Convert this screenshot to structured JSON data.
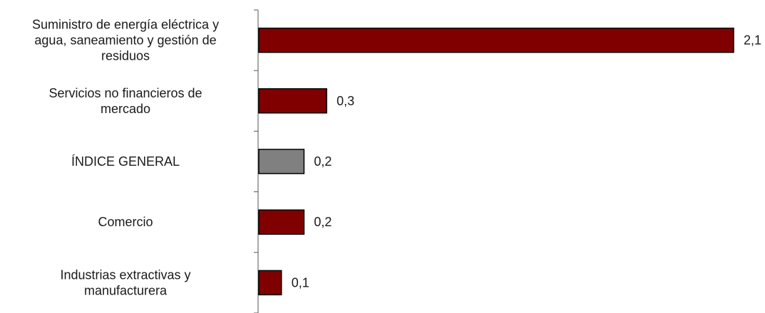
{
  "chart_data": {
    "type": "bar",
    "orientation": "horizontal",
    "categories": [
      "Suministro de energía eléctrica y agua, saneamiento y gestión de residuos",
      "Servicios no financieros de mercado",
      "ÍNDICE GENERAL",
      "Comercio",
      "Industrias extractivas y manufacturera"
    ],
    "category_lines": [
      [
        "Suministro de energía eléctrica y",
        "agua, saneamiento y gestión de",
        "residuos"
      ],
      [
        "Servicios no financieros de",
        "mercado"
      ],
      [
        "ÍNDICE GENERAL"
      ],
      [
        "Comercio"
      ],
      [
        "Industrias extractivas y",
        "manufacturera"
      ]
    ],
    "values": [
      2.1,
      0.3,
      0.2,
      0.2,
      0.1
    ],
    "value_labels": [
      "2,1",
      "0,3",
      "0,2",
      "0,2",
      "0,1"
    ],
    "bar_colors": [
      "#800000",
      "#800000",
      "#808080",
      "#800000",
      "#800000"
    ],
    "xlim": [
      0,
      2.1
    ],
    "title": "",
    "xlabel": "",
    "ylabel": "",
    "grid": false,
    "legend": "none"
  }
}
